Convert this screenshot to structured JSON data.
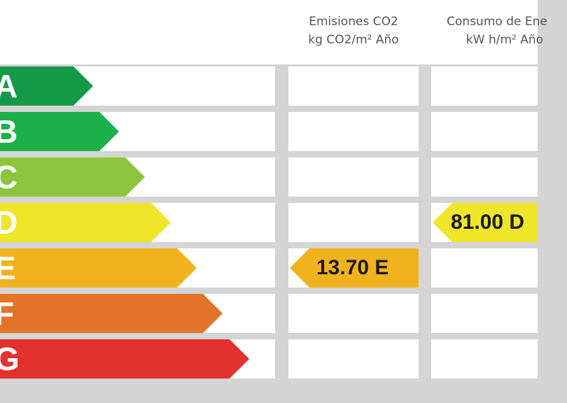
{
  "columns": {
    "emissions": {
      "line1": "Emisiones CO2",
      "line2": "kg CO2/m² Año"
    },
    "consumption": {
      "line1": "Consumo de Ene",
      "line2": "kW h/m² Año"
    }
  },
  "ratings": [
    {
      "letter": "A",
      "color": "#159a4a"
    },
    {
      "letter": "B",
      "color": "#1db049"
    },
    {
      "letter": "C",
      "color": "#8dc43e"
    },
    {
      "letter": "D",
      "color": "#efe62b"
    },
    {
      "letter": "E",
      "color": "#f1b31d"
    },
    {
      "letter": "F",
      "color": "#e4742a"
    },
    {
      "letter": "G",
      "color": "#e3312d"
    }
  ],
  "emissions_value": {
    "text": "13.70 E",
    "row": 4,
    "color": "#f1b31d"
  },
  "consumption_value": {
    "text": "81.00 D",
    "row": 3,
    "color": "#efe62b"
  }
}
